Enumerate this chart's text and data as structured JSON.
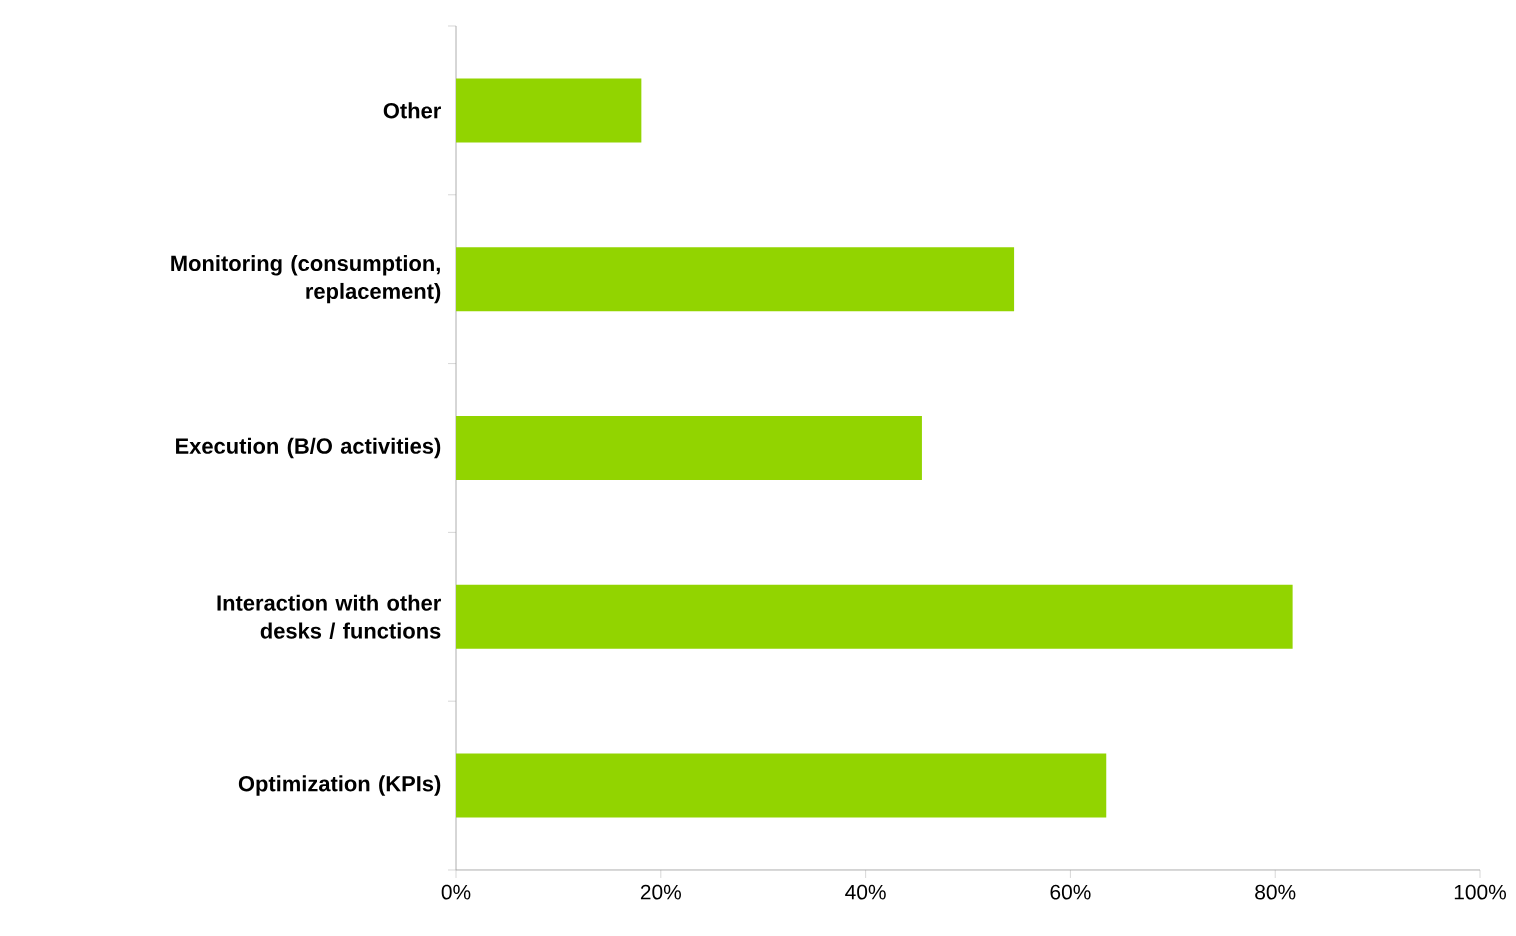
{
  "chart_data": {
    "type": "bar",
    "orientation": "horizontal",
    "categories": [
      "Other",
      "Monitoring (consumption, replacement)",
      "Execution (B/O activities)",
      "Interaction with other desks / functions",
      "Optimization (KPIs)"
    ],
    "values": [
      18.1,
      54.5,
      45.5,
      81.7,
      63.5
    ],
    "color": "#92d400",
    "xlim": [
      0,
      100
    ],
    "xticks": [
      {
        "value": 0,
        "label": "0%"
      },
      {
        "value": 20,
        "label": "20%"
      },
      {
        "value": 40,
        "label": "40%"
      },
      {
        "value": 60,
        "label": "60%"
      },
      {
        "value": 80,
        "label": "80%"
      },
      {
        "value": 100,
        "label": "100%"
      }
    ],
    "grid": false
  }
}
